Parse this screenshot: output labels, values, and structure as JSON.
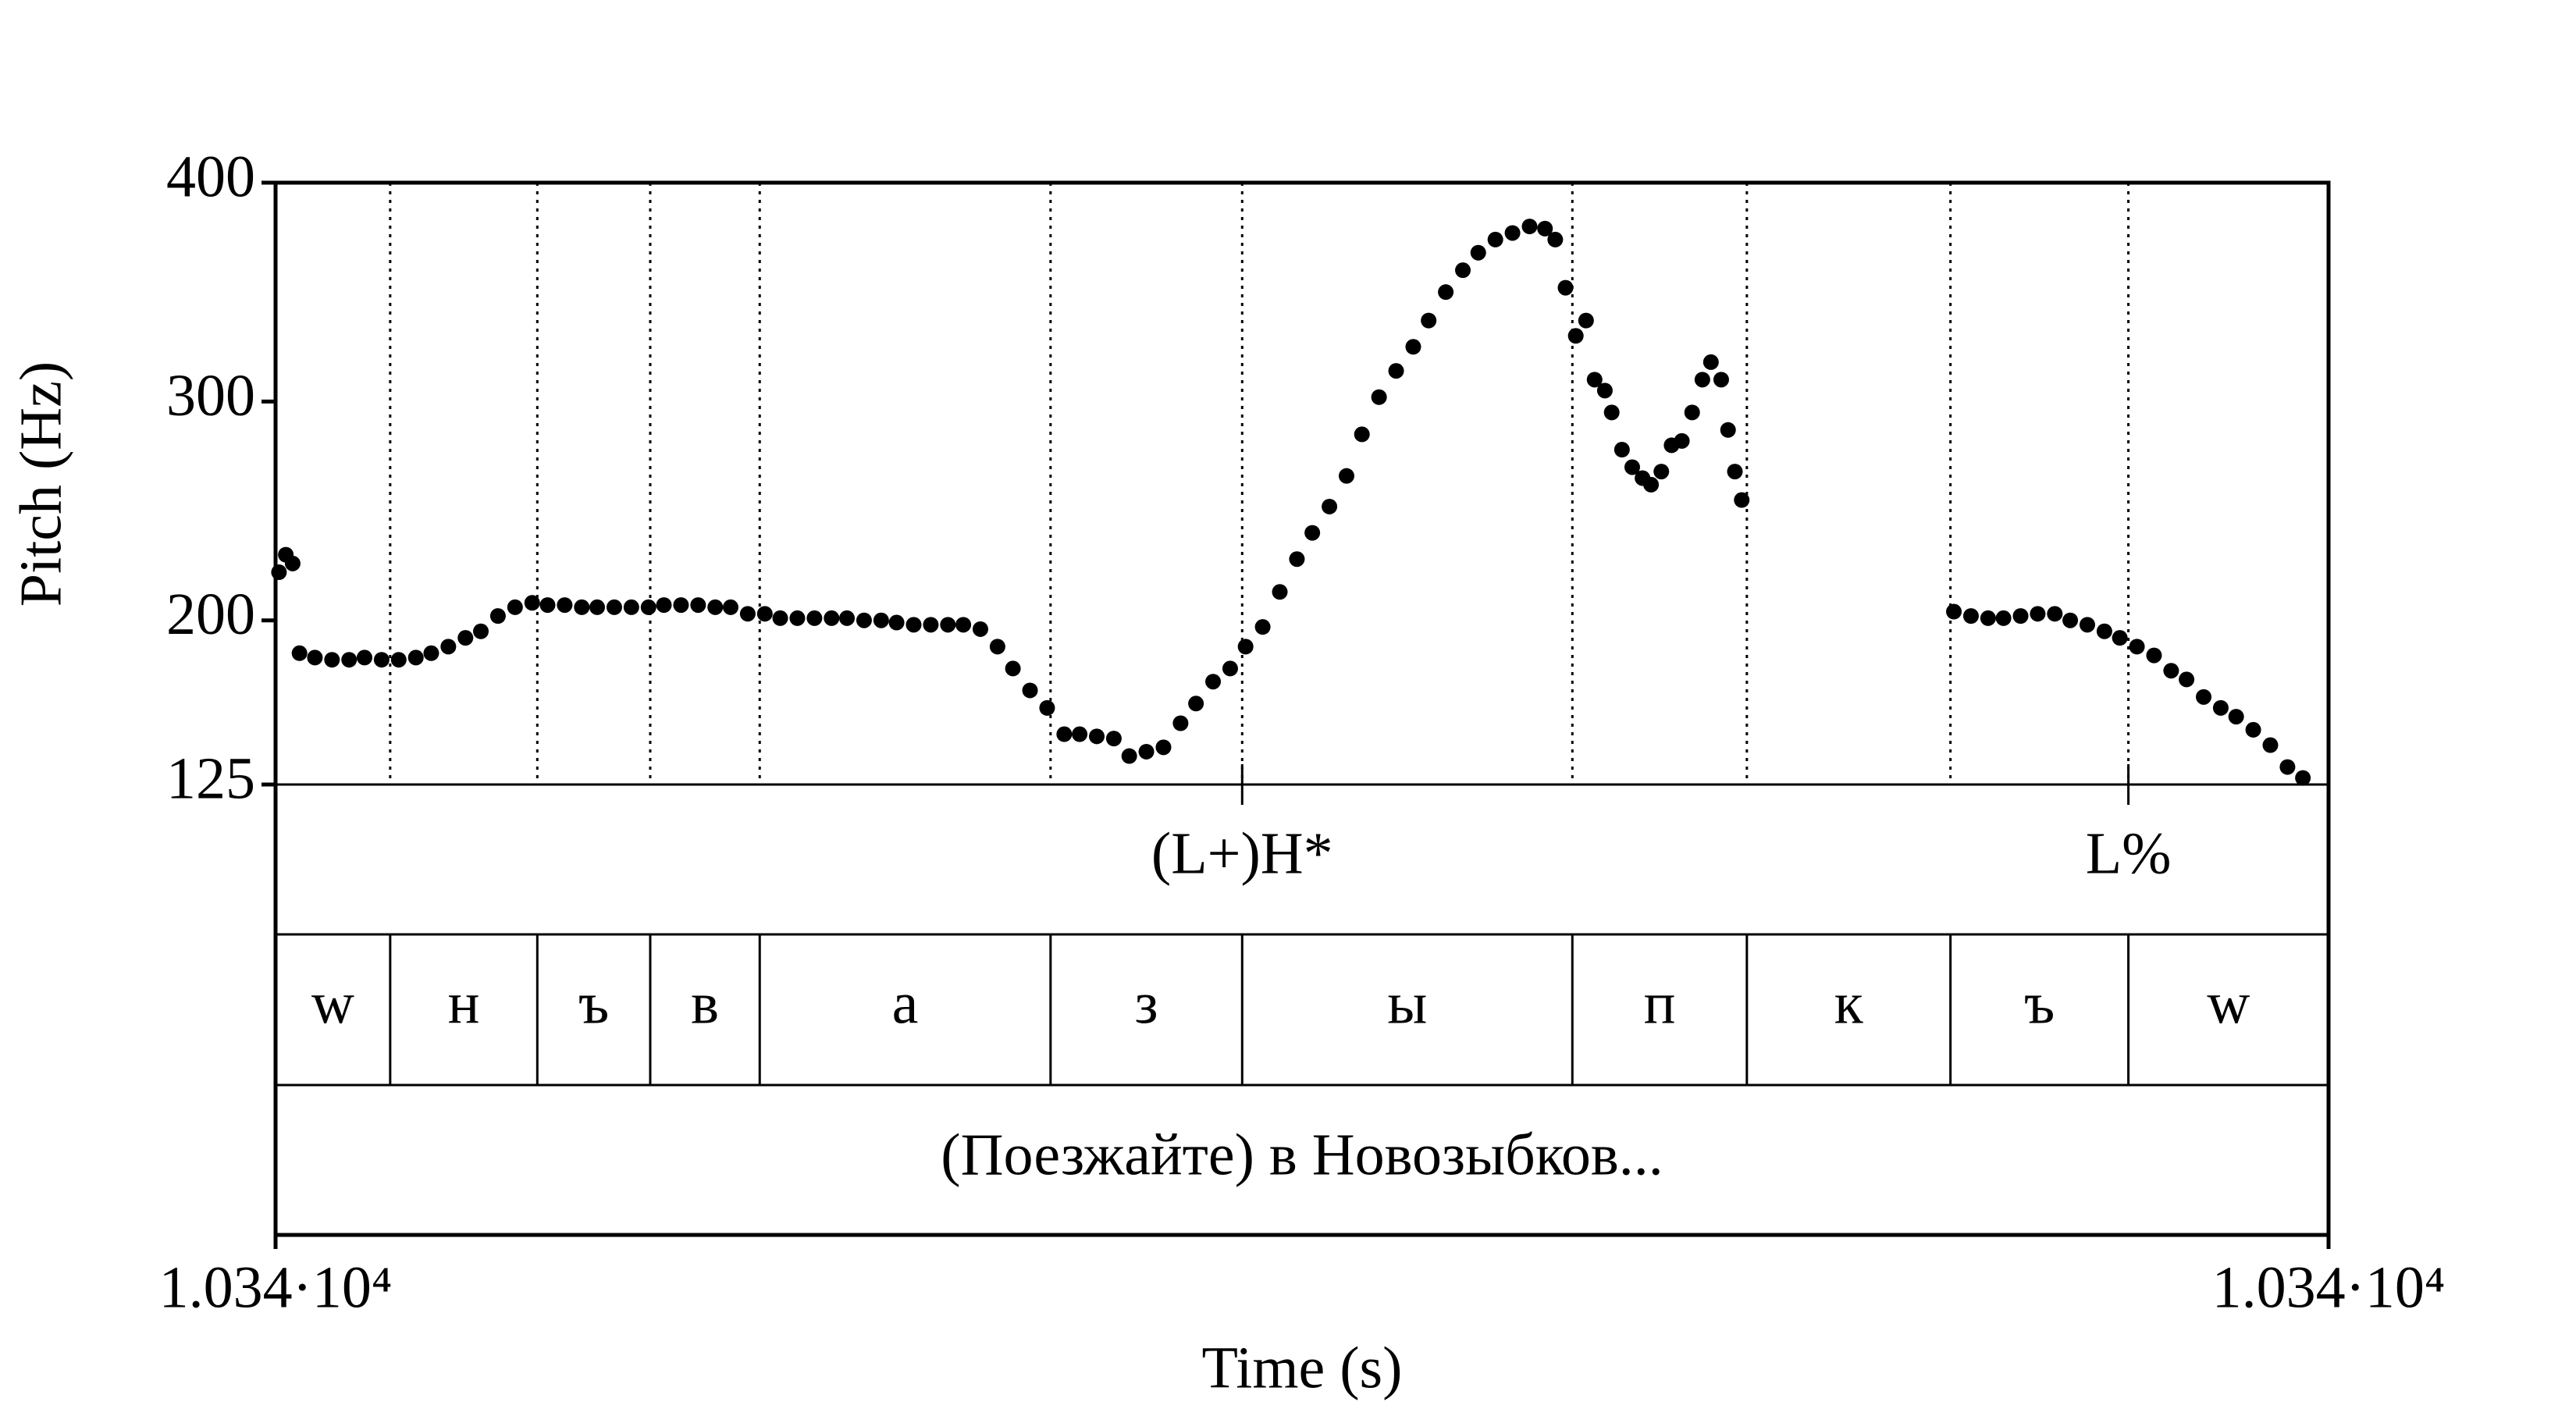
{
  "chart_data": {
    "type": "scatter",
    "ylabel": "Pitch (Hz)",
    "xlabel": "Time (s)",
    "color": "#000000",
    "xlim": [
      10340,
      10341.2
    ],
    "xticks": [
      {
        "value": 10340,
        "label": "1.034·10⁴"
      },
      {
        "value": 10341.2,
        "label": "1.034·10⁴"
      }
    ],
    "ylim": [
      125,
      400
    ],
    "yticks": [
      125,
      200,
      300,
      400
    ],
    "x": [
      10340.002,
      10340.006,
      10340.01,
      10340.014,
      10340.023,
      10340.033,
      10340.043,
      10340.052,
      10340.062,
      10340.072,
      10340.082,
      10340.091,
      10340.101,
      10340.111,
      10340.12,
      10340.13,
      10340.14,
      10340.15,
      10340.159,
      10340.169,
      10340.179,
      10340.188,
      10340.198,
      10340.208,
      10340.218,
      10340.227,
      10340.237,
      10340.247,
      10340.257,
      10340.266,
      10340.276,
      10340.286,
      10340.295,
      10340.305,
      10340.315,
      10340.325,
      10340.334,
      10340.344,
      10340.354,
      10340.363,
      10340.373,
      10340.383,
      10340.393,
      10340.402,
      10340.412,
      10340.422,
      10340.431,
      10340.441,
      10340.451,
      10340.461,
      10340.47,
      10340.48,
      10340.49,
      10340.499,
      10340.509,
      10340.519,
      10340.529,
      10340.538,
      10340.548,
      10340.558,
      10340.567,
      10340.577,
      10340.587,
      10340.597,
      10340.606,
      10340.616,
      10340.626,
      10340.635,
      10340.645,
      10340.655,
      10340.665,
      10340.674,
      10340.684,
      10340.694,
      10340.703,
      10340.713,
      10340.723,
      10340.733,
      10340.742,
      10340.748,
      10340.754,
      10340.76,
      10340.766,
      10340.771,
      10340.777,
      10340.781,
      10340.787,
      10340.793,
      10340.799,
      10340.804,
      10340.81,
      10340.816,
      10340.822,
      10340.828,
      10340.834,
      10340.839,
      10340.845,
      10340.849,
      10340.853,
      10340.857,
      10340.981,
      10340.991,
      10341.001,
      10341.01,
      10341.02,
      10341.03,
      10341.04,
      10341.049,
      10341.059,
      10341.069,
      10341.078,
      10341.088,
      10341.098,
      10341.108,
      10341.117,
      10341.127,
      10341.137,
      10341.146,
      10341.156,
      10341.166,
      10341.176,
      10341.185
    ],
    "values": [
      222,
      230,
      226,
      185,
      183,
      182,
      182,
      183,
      182,
      182,
      183,
      185,
      188,
      192,
      195,
      202,
      206,
      208,
      207,
      207,
      206,
      206,
      206,
      206,
      206,
      207,
      207,
      207,
      206,
      206,
      203,
      203,
      201,
      201,
      201,
      201,
      201,
      200,
      200,
      199,
      198,
      198,
      198,
      198,
      196,
      188,
      178,
      168,
      160,
      148,
      148,
      147,
      146,
      138,
      140,
      142,
      153,
      162,
      172,
      178,
      188,
      197,
      213,
      228,
      240,
      252,
      266,
      285,
      302,
      314,
      325,
      337,
      350,
      360,
      368,
      374,
      377,
      380,
      379,
      374,
      352,
      330,
      337,
      310,
      305,
      295,
      278,
      270,
      265,
      262,
      268,
      280,
      282,
      295,
      310,
      318,
      310,
      287,
      268,
      255,
      204,
      202,
      201,
      201,
      202,
      203,
      203,
      200,
      198,
      195,
      192,
      188,
      184,
      177,
      173,
      165,
      160,
      156,
      150,
      143,
      133,
      128
    ],
    "tiers": {
      "tones": {
        "x": [
          10340.565,
          10341.083
        ],
        "labels": [
          "(L+)H*",
          "L%"
        ]
      },
      "segments": {
        "boundaries": [
          10340.067,
          10340.153,
          10340.219,
          10340.283,
          10340.453,
          10340.565,
          10340.758,
          10340.86,
          10340.979,
          10341.083
        ],
        "labels": [
          "w",
          "н",
          "ъ",
          "в",
          "а",
          "з",
          "ы",
          "п",
          "к",
          "ъ",
          "w"
        ]
      },
      "words": {
        "labels": [
          "(Поезжайте) в Новозыбков..."
        ]
      }
    }
  }
}
